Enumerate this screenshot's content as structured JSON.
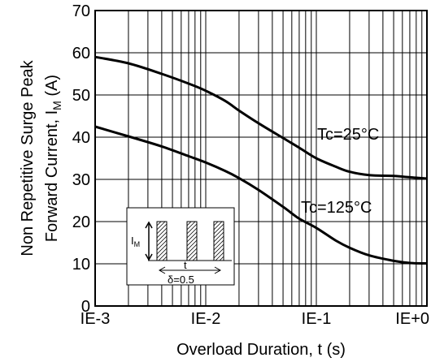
{
  "chart_data": {
    "type": "line",
    "xscale": "log",
    "x_ticks": [
      {
        "value": 0.001,
        "label": "IE-3"
      },
      {
        "value": 0.01,
        "label": "IE-2"
      },
      {
        "value": 0.1,
        "label": "IE-1"
      },
      {
        "value": 1,
        "label": "IE+0"
      }
    ],
    "xlim": [
      0.001,
      1
    ],
    "ylim": [
      0,
      70
    ],
    "y_ticks": [
      0,
      10,
      20,
      30,
      40,
      50,
      60,
      70
    ],
    "grid": true,
    "xlabel": "Overload Duration, t (s)",
    "ylabel_line1": "Non Repetitive Surge Peak",
    "ylabel_line2_pre": "Forward Current, I",
    "ylabel_line2_sub": "M",
    "ylabel_line2_post": " (A)",
    "series": [
      {
        "name": "Tc=25°C",
        "x": [
          0.001,
          0.002,
          0.004,
          0.007,
          0.01,
          0.015,
          0.02,
          0.03,
          0.05,
          0.07,
          0.1,
          0.15,
          0.2,
          0.3,
          0.5,
          0.7,
          1
        ],
        "y": [
          59,
          57.5,
          55,
          52.7,
          51,
          48.6,
          46.3,
          43.3,
          39.8,
          37.5,
          35,
          33,
          31.8,
          31,
          30.8,
          30.5,
          30.2
        ]
      },
      {
        "name": "Tc=125°C",
        "x": [
          0.001,
          0.002,
          0.004,
          0.007,
          0.01,
          0.015,
          0.02,
          0.03,
          0.05,
          0.07,
          0.1,
          0.15,
          0.2,
          0.3,
          0.5,
          0.7,
          1
        ],
        "y": [
          42.5,
          40.2,
          37.8,
          35.5,
          34,
          32,
          30.3,
          27.5,
          23.5,
          20.7,
          18.5,
          15.5,
          13.8,
          12,
          10.7,
          10.2,
          10.1
        ]
      }
    ],
    "inset": {
      "current_label": "I",
      "current_sub": "M",
      "period_label": "t",
      "duty_label": "δ=0.5"
    }
  }
}
